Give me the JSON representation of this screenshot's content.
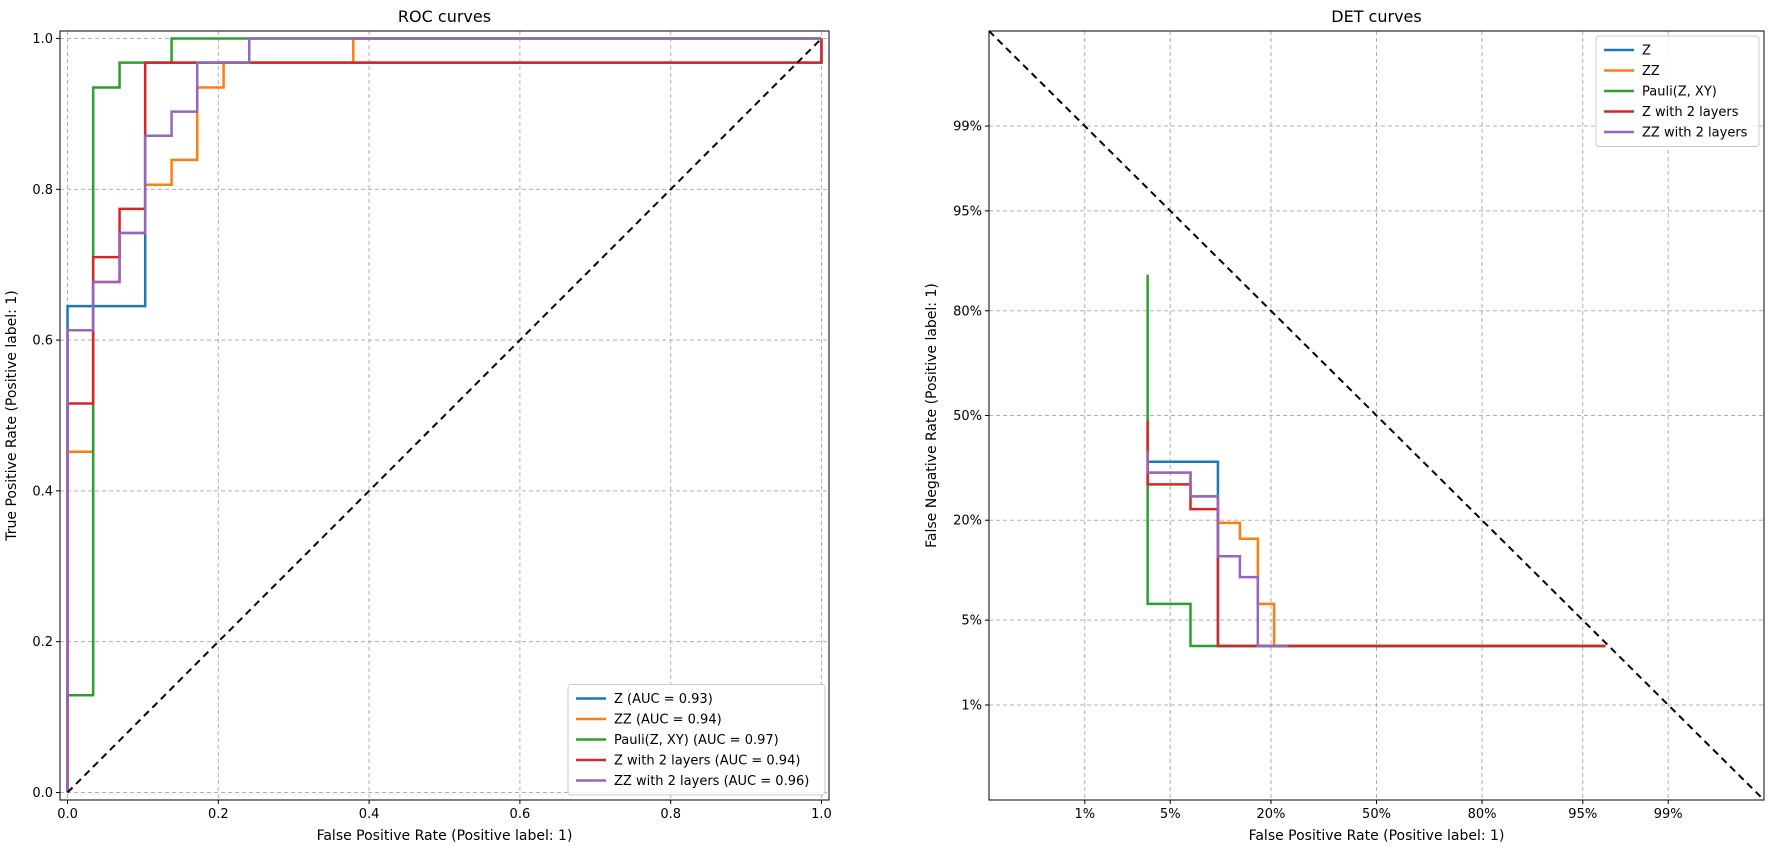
{
  "colors": {
    "Z": "#1f77b4",
    "ZZ": "#ff7f0e",
    "Pauli": "#2ca02c",
    "Z2": "#d62728",
    "ZZ2": "#9467bd"
  },
  "chart_data": [
    {
      "type": "line",
      "title": "ROC curves",
      "xlabel": "False Positive Rate (Positive label: 1)",
      "ylabel": "True Positive Rate (Positive label: 1)",
      "xlim": [
        -0.01,
        1.01
      ],
      "ylim": [
        -0.01,
        1.01
      ],
      "xticks": [
        0.0,
        0.2,
        0.4,
        0.6,
        0.8,
        1.0
      ],
      "xtick_labels": [
        "0.0",
        "0.2",
        "0.4",
        "0.6",
        "0.8",
        "1.0"
      ],
      "yticks": [
        0.0,
        0.2,
        0.4,
        0.6,
        0.8,
        1.0
      ],
      "ytick_labels": [
        "0.0",
        "0.2",
        "0.4",
        "0.6",
        "0.8",
        "1.0"
      ],
      "grid": true,
      "legend_position": "bottom-right",
      "chance_line": [
        [
          0,
          0
        ],
        [
          1,
          1
        ]
      ],
      "series": [
        {
          "key": "Z",
          "name": "Z (AUC = 0.93)",
          "points": [
            [
              0,
              0
            ],
            [
              0,
              0.645
            ],
            [
              0.103,
              0.645
            ],
            [
              0.103,
              0.968
            ],
            [
              1,
              0.968
            ],
            [
              1,
              1
            ]
          ]
        },
        {
          "key": "ZZ",
          "name": "ZZ (AUC = 0.94)",
          "points": [
            [
              0,
              0
            ],
            [
              0,
              0.452
            ],
            [
              0.034,
              0.452
            ],
            [
              0.034,
              0.677
            ],
            [
              0.069,
              0.677
            ],
            [
              0.069,
              0.742
            ],
            [
              0.103,
              0.742
            ],
            [
              0.103,
              0.806
            ],
            [
              0.138,
              0.806
            ],
            [
              0.138,
              0.839
            ],
            [
              0.172,
              0.839
            ],
            [
              0.172,
              0.935
            ],
            [
              0.207,
              0.935
            ],
            [
              0.207,
              0.968
            ],
            [
              0.379,
              0.968
            ],
            [
              0.379,
              1
            ],
            [
              1,
              1
            ]
          ]
        },
        {
          "key": "Pauli",
          "name": "Pauli(Z, XY) (AUC = 0.97)",
          "points": [
            [
              0,
              0
            ],
            [
              0,
              0.129
            ],
            [
              0.034,
              0.129
            ],
            [
              0.034,
              0.935
            ],
            [
              0.069,
              0.935
            ],
            [
              0.069,
              0.968
            ],
            [
              0.138,
              0.968
            ],
            [
              0.138,
              1
            ],
            [
              1,
              1
            ]
          ]
        },
        {
          "key": "Z2",
          "name": "Z with 2 layers (AUC = 0.94)",
          "points": [
            [
              0,
              0
            ],
            [
              0,
              0.516
            ],
            [
              0.034,
              0.516
            ],
            [
              0.034,
              0.71
            ],
            [
              0.069,
              0.71
            ],
            [
              0.069,
              0.774
            ],
            [
              0.103,
              0.774
            ],
            [
              0.103,
              0.968
            ],
            [
              1,
              0.968
            ],
            [
              1,
              1
            ]
          ]
        },
        {
          "key": "ZZ2",
          "name": "ZZ with 2 layers (AUC = 0.96)",
          "points": [
            [
              0,
              0
            ],
            [
              0,
              0.613
            ],
            [
              0.034,
              0.613
            ],
            [
              0.034,
              0.677
            ],
            [
              0.069,
              0.677
            ],
            [
              0.069,
              0.742
            ],
            [
              0.103,
              0.742
            ],
            [
              0.103,
              0.871
            ],
            [
              0.138,
              0.871
            ],
            [
              0.138,
              0.903
            ],
            [
              0.172,
              0.903
            ],
            [
              0.172,
              0.968
            ],
            [
              0.241,
              0.968
            ],
            [
              0.241,
              1
            ],
            [
              1,
              1
            ]
          ]
        }
      ]
    },
    {
      "type": "line",
      "title": "DET curves",
      "xlabel": "False Positive Rate (Positive label: 1)",
      "ylabel": "False Negative Rate (Positive label: 1)",
      "scale": "normal-deviate (probit)",
      "xlim": [
        0.001,
        0.999
      ],
      "ylim": [
        0.001,
        0.999
      ],
      "xticks": [
        0.01,
        0.05,
        0.2,
        0.5,
        0.8,
        0.95,
        0.99
      ],
      "xtick_labels": [
        "1%",
        "5%",
        "20%",
        "50%",
        "80%",
        "95%",
        "99%"
      ],
      "yticks": [
        0.01,
        0.05,
        0.2,
        0.5,
        0.8,
        0.95,
        0.99
      ],
      "ytick_labels": [
        "1%",
        "5%",
        "20%",
        "50%",
        "80%",
        "95%",
        "99%"
      ],
      "grid": true,
      "legend_position": "top-right",
      "chance_line": [
        [
          0.001,
          0.999
        ],
        [
          0.999,
          0.001
        ]
      ],
      "series": [
        {
          "key": "Z",
          "name": "Z",
          "points": [
            [
              0.034,
              0.355
            ],
            [
              0.103,
              0.355
            ],
            [
              0.103,
              0.032
            ],
            [
              0.966,
              0.032
            ]
          ]
        },
        {
          "key": "ZZ",
          "name": "ZZ",
          "points": [
            [
              0.034,
              0.323
            ],
            [
              0.069,
              0.323
            ],
            [
              0.069,
              0.258
            ],
            [
              0.103,
              0.258
            ],
            [
              0.103,
              0.194
            ],
            [
              0.138,
              0.194
            ],
            [
              0.138,
              0.161
            ],
            [
              0.172,
              0.161
            ],
            [
              0.172,
              0.065
            ],
            [
              0.207,
              0.065
            ],
            [
              0.207,
              0.032
            ],
            [
              0.966,
              0.032
            ]
          ]
        },
        {
          "key": "Pauli",
          "name": "Pauli(Z, XY)",
          "points": [
            [
              0.034,
              0.871
            ],
            [
              0.034,
              0.065
            ],
            [
              0.069,
              0.065
            ],
            [
              0.069,
              0.032
            ],
            [
              0.966,
              0.032
            ]
          ]
        },
        {
          "key": "Z2",
          "name": "Z with 2 layers",
          "points": [
            [
              0.034,
              0.484
            ],
            [
              0.034,
              0.29
            ],
            [
              0.069,
              0.29
            ],
            [
              0.069,
              0.226
            ],
            [
              0.103,
              0.226
            ],
            [
              0.103,
              0.032
            ],
            [
              0.966,
              0.032
            ]
          ]
        },
        {
          "key": "ZZ2",
          "name": "ZZ with 2 layers",
          "points": [
            [
              0.034,
              0.387
            ],
            [
              0.034,
              0.323
            ],
            [
              0.069,
              0.323
            ],
            [
              0.069,
              0.258
            ],
            [
              0.103,
              0.258
            ],
            [
              0.103,
              0.129
            ],
            [
              0.138,
              0.129
            ],
            [
              0.138,
              0.097
            ],
            [
              0.172,
              0.097
            ],
            [
              0.172,
              0.032
            ],
            [
              0.241,
              0.032
            ]
          ]
        }
      ]
    }
  ]
}
